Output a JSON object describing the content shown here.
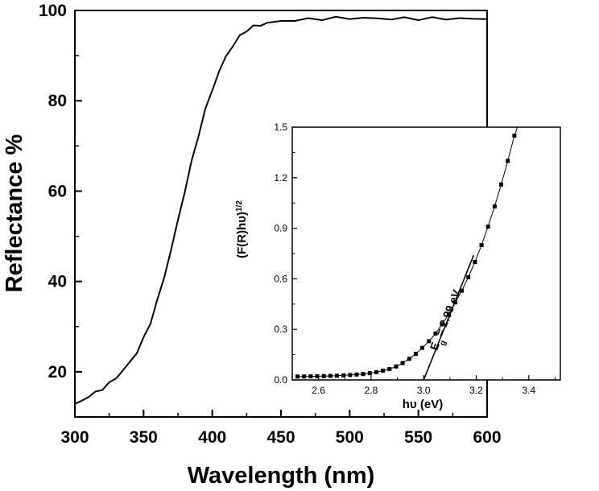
{
  "chart_data": [
    {
      "type": "line",
      "title": "",
      "xlabel": "Wavelength (nm)",
      "ylabel": "Reflectance %",
      "xlim": [
        300,
        600
      ],
      "ylim": [
        10,
        100
      ],
      "xticks": [
        300,
        350,
        400,
        450,
        500,
        550,
        600
      ],
      "yticks": [
        20,
        40,
        60,
        80,
        100
      ],
      "grid": false,
      "legend": "none",
      "line_color": "#000000",
      "series": [
        {
          "x": [
            300,
            305,
            310,
            315,
            320,
            325,
            330,
            335,
            340,
            345,
            350,
            355,
            360,
            365,
            370,
            375,
            380,
            385,
            390,
            395,
            400,
            405,
            410,
            415,
            420,
            425,
            430,
            435,
            440,
            450,
            460,
            470,
            480,
            490,
            500,
            510,
            520,
            530,
            540,
            550,
            560,
            570,
            580,
            590,
            600
          ],
          "values": [
            12.9,
            13.6,
            14.4,
            15.3,
            16.3,
            17.4,
            18.7,
            20.3,
            22.1,
            24.3,
            27.3,
            31.0,
            35.7,
            41.0,
            47.0,
            53.5,
            60.0,
            66.5,
            72.5,
            78.0,
            82.5,
            86.5,
            89.8,
            92.3,
            94.2,
            95.7,
            96.4,
            96.8,
            97.2,
            97.6,
            97.9,
            98.0,
            98.2,
            98.3,
            98.3,
            98.3,
            98.2,
            98.2,
            98.2,
            98.2,
            98.2,
            98.2,
            98.2,
            98.1,
            98.1
          ]
        }
      ]
    },
    {
      "type": "line",
      "title": "",
      "xlabel": "hυ (eV)",
      "ylabel": "(F(R)hυ)",
      "ylabel_superscript": "1/2",
      "xlim": [
        2.5,
        3.52
      ],
      "ylim": [
        0,
        1.5
      ],
      "xticks": [
        "2.6",
        "2.8",
        "3.0",
        "3.2",
        "3.4"
      ],
      "yticks": [
        "0.0",
        "0.3",
        "0.6",
        "0.9",
        "1.2",
        "1.5"
      ],
      "grid": false,
      "legend": "none",
      "series": [
        {
          "marker": "square",
          "x": [
            2.52,
            2.545,
            2.57,
            2.595,
            2.62,
            2.645,
            2.67,
            2.695,
            2.72,
            2.745,
            2.77,
            2.795,
            2.82,
            2.845,
            2.87,
            2.895,
            2.92,
            2.945,
            2.97,
            2.995,
            3.02,
            3.045,
            3.07,
            3.095,
            3.12,
            3.145,
            3.17,
            3.195,
            3.22,
            3.245,
            3.27,
            3.295,
            3.32,
            3.345,
            3.38
          ],
          "values": [
            0.02,
            0.02,
            0.021,
            0.022,
            0.023,
            0.024,
            0.025,
            0.027,
            0.029,
            0.032,
            0.035,
            0.04,
            0.046,
            0.055,
            0.065,
            0.08,
            0.1,
            0.125,
            0.155,
            0.19,
            0.23,
            0.275,
            0.33,
            0.39,
            0.46,
            0.53,
            0.61,
            0.7,
            0.8,
            0.91,
            1.03,
            1.16,
            1.3,
            1.45,
            1.65
          ]
        }
      ],
      "tangent_line": {
        "x": [
          3.0,
          3.19
        ],
        "values": [
          0.0,
          0.74
        ]
      },
      "annotation": {
        "main": "E",
        "subscript": "g",
        "rest": " = 2.99 eV"
      }
    }
  ]
}
